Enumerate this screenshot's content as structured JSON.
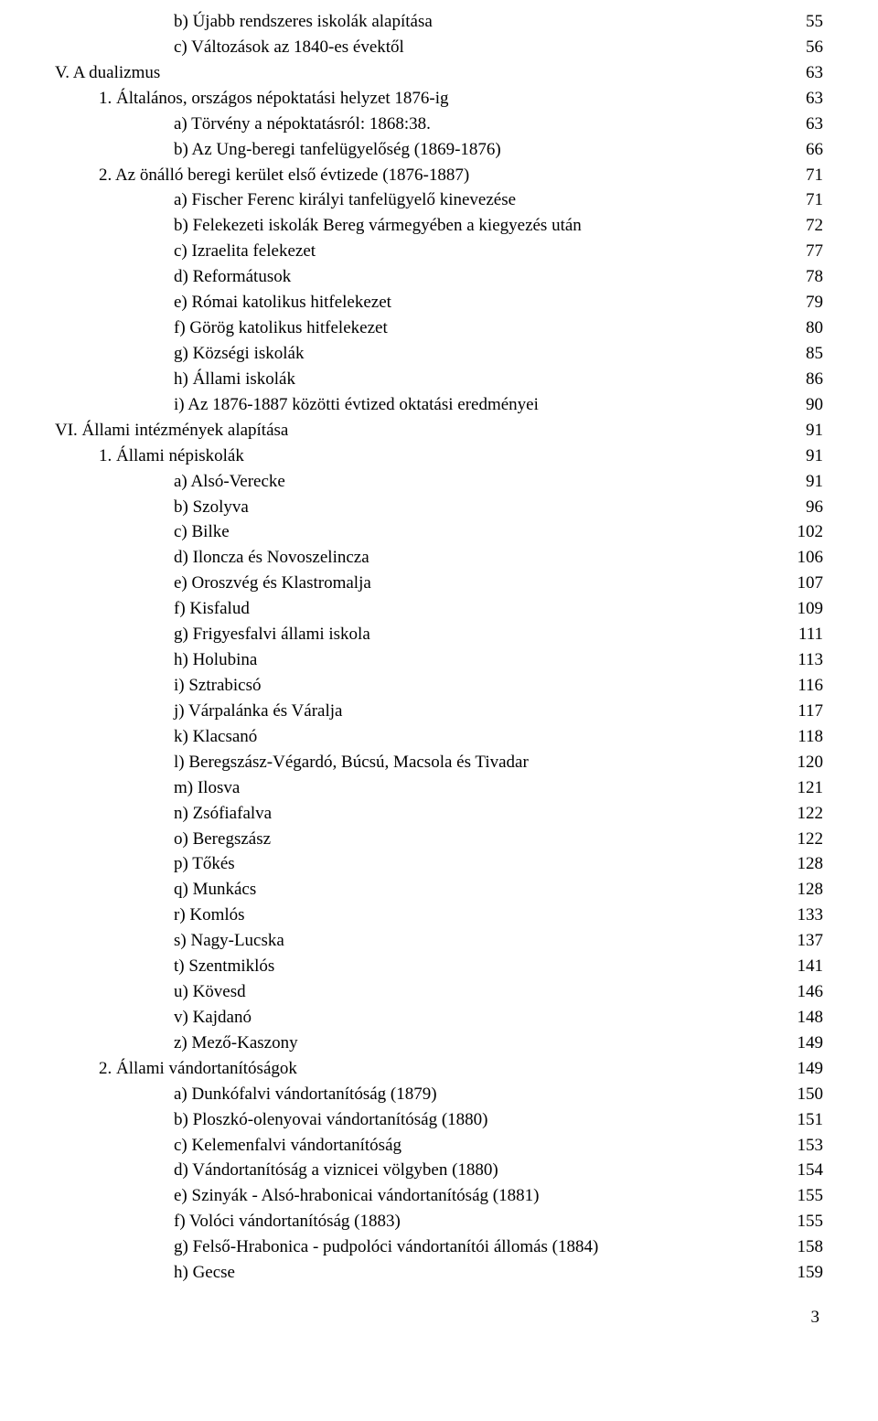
{
  "page_number": "3",
  "entries": [
    {
      "indent": 2,
      "label": "b) Újabb rendszeres iskolák alapítása",
      "page": "55"
    },
    {
      "indent": 2,
      "label": "c) Változások az 1840-es évektől",
      "page": "56"
    },
    {
      "indent": 0,
      "label": "V. A dualizmus",
      "page": "63"
    },
    {
      "indent": 1,
      "label": "1. Általános, országos népoktatási helyzet 1876-ig",
      "page": "63"
    },
    {
      "indent": 2,
      "label": "a) Törvény a népoktatásról: 1868:38.",
      "page": "63"
    },
    {
      "indent": 2,
      "label": "b) Az Ung-beregi tanfelügyelőség (1869-1876)",
      "page": "66"
    },
    {
      "indent": 1,
      "label": "2. Az önálló beregi kerület első évtizede (1876-1887)",
      "page": "71"
    },
    {
      "indent": 2,
      "label": "a) Fischer Ferenc királyi tanfelügyelő kinevezése",
      "page": "71"
    },
    {
      "indent": 2,
      "label": "b) Felekezeti iskolák Bereg vármegyében a kiegyezés után",
      "page": "72"
    },
    {
      "indent": 2,
      "label": "c) Izraelita felekezet",
      "page": "77"
    },
    {
      "indent": 2,
      "label": "d) Reformátusok",
      "page": "78"
    },
    {
      "indent": 2,
      "label": "e) Római katolikus hitfelekezet",
      "page": "79"
    },
    {
      "indent": 2,
      "label": "f) Görög katolikus hitfelekezet",
      "page": "80"
    },
    {
      "indent": 2,
      "label": "g) Községi iskolák",
      "page": "85"
    },
    {
      "indent": 2,
      "label": "h) Állami iskolák",
      "page": "86"
    },
    {
      "indent": 2,
      "label": "i) Az 1876-1887 közötti évtized oktatási eredményei",
      "page": "90"
    },
    {
      "indent": 0,
      "label": "VI. Állami intézmények alapítása",
      "page": "91"
    },
    {
      "indent": 1,
      "label": "1. Állami népiskolák",
      "page": "91"
    },
    {
      "indent": 2,
      "label": "a) Alsó-Verecke",
      "page": "91"
    },
    {
      "indent": 2,
      "label": "b) Szolyva",
      "page": "96"
    },
    {
      "indent": 2,
      "label": "c) Bilke",
      "page": "102"
    },
    {
      "indent": 2,
      "label": "d) Iloncza és Novoszelincza",
      "page": "106"
    },
    {
      "indent": 2,
      "label": "e) Oroszvég és Klastromalja",
      "page": "107"
    },
    {
      "indent": 2,
      "label": "f) Kisfalud",
      "page": "109"
    },
    {
      "indent": 2,
      "label": "g) Frigyesfalvi állami iskola",
      "page": "111"
    },
    {
      "indent": 2,
      "label": "h) Holubina",
      "page": "113"
    },
    {
      "indent": 2,
      "label": "i) Sztrabicsó",
      "page": "116"
    },
    {
      "indent": 2,
      "label": "j) Várpalánka és Váralja",
      "page": "117"
    },
    {
      "indent": 2,
      "label": "k) Klacsanó",
      "page": "118"
    },
    {
      "indent": 2,
      "label": "l) Beregszász-Végardó, Búcsú, Macsola és Tivadar",
      "page": "120"
    },
    {
      "indent": 2,
      "label": "m) Ilosva",
      "page": "121"
    },
    {
      "indent": 2,
      "label": "n) Zsófiafalva",
      "page": "122"
    },
    {
      "indent": 2,
      "label": "o) Beregszász",
      "page": "122"
    },
    {
      "indent": 2,
      "label": "p) Tőkés",
      "page": "128"
    },
    {
      "indent": 2,
      "label": "q) Munkács",
      "page": "128"
    },
    {
      "indent": 2,
      "label": "r) Komlós",
      "page": "133"
    },
    {
      "indent": 2,
      "label": "s) Nagy-Lucska",
      "page": "137"
    },
    {
      "indent": 2,
      "label": "t) Szentmiklós",
      "page": "141"
    },
    {
      "indent": 2,
      "label": "u) Kövesd",
      "page": "146"
    },
    {
      "indent": 2,
      "label": "v) Kajdanó",
      "page": "148"
    },
    {
      "indent": 2,
      "label": "z) Mező-Kaszony",
      "page": "149"
    },
    {
      "indent": 1,
      "label": "2. Állami vándortanítóságok",
      "page": "149"
    },
    {
      "indent": 2,
      "label": "a) Dunkófalvi vándortanítóság (1879)",
      "page": "150"
    },
    {
      "indent": 2,
      "label": "b) Ploszkó-olenyovai vándortanítóság (1880)",
      "page": "151"
    },
    {
      "indent": 2,
      "label": "c) Kelemenfalvi vándortanítóság",
      "page": "153"
    },
    {
      "indent": 2,
      "label": "d) Vándortanítóság a viznicei völgyben (1880)",
      "page": "154"
    },
    {
      "indent": 2,
      "label": "e) Szinyák - Alsó-hrabonicai vándortanítóság (1881)",
      "page": "155"
    },
    {
      "indent": 2,
      "label": "f) Volóci vándortanítóság (1883)",
      "page": "155"
    },
    {
      "indent": 2,
      "label": "g) Felső-Hrabonica - pudpolóci vándortanítói állomás (1884)",
      "page": "158"
    },
    {
      "indent": 2,
      "label": "h) Gecse",
      "page": "159"
    }
  ]
}
